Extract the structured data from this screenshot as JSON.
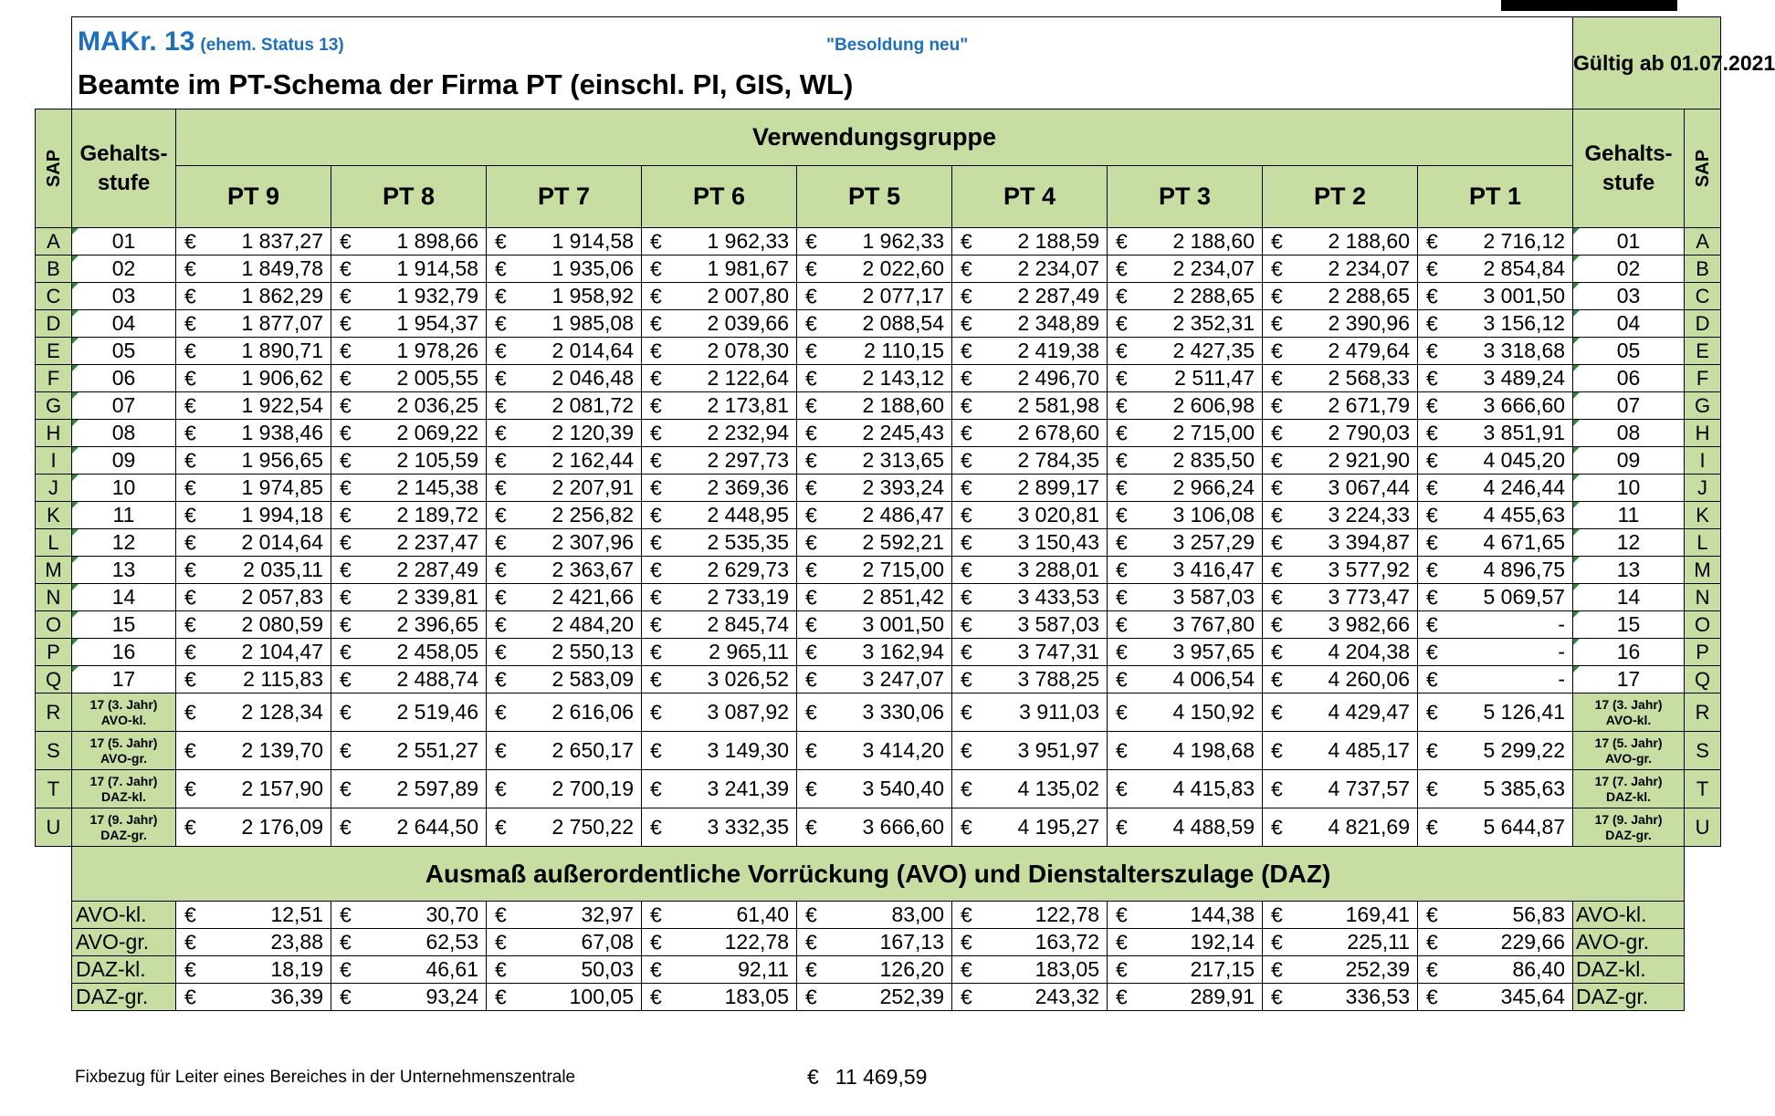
{
  "header": {
    "mak": "MAKr. 13",
    "status": "(ehem. Status 13)",
    "besoldung": "\"Besoldung neu\"",
    "subtitle": "Beamte im PT-Schema der Firma PT (einschl. PI, GIS, WL)",
    "valid": "Gültig ab 01.07.2021"
  },
  "columns": {
    "sap": "SAP",
    "gehaltsstufe": "Gehalts-stufe",
    "verwendungsgruppe": "Verwendungsgruppe",
    "groups": [
      "PT 9",
      "PT 8",
      "PT 7",
      "PT 6",
      "PT 5",
      "PT 4",
      "PT 3",
      "PT 2",
      "PT 1"
    ]
  },
  "currency": "€",
  "rows": [
    {
      "sap": "A",
      "stufe": "01",
      "stufe_b": "",
      "values": [
        "1 837,27",
        "1 898,66",
        "1 914,58",
        "1 962,33",
        "1 962,33",
        "2 188,59",
        "2 188,60",
        "2 188,60",
        "2 716,12"
      ]
    },
    {
      "sap": "B",
      "stufe": "02",
      "stufe_b": "",
      "values": [
        "1 849,78",
        "1 914,58",
        "1 935,06",
        "1 981,67",
        "2 022,60",
        "2 234,07",
        "2 234,07",
        "2 234,07",
        "2 854,84"
      ]
    },
    {
      "sap": "C",
      "stufe": "03",
      "stufe_b": "",
      "values": [
        "1 862,29",
        "1 932,79",
        "1 958,92",
        "2 007,80",
        "2 077,17",
        "2 287,49",
        "2 288,65",
        "2 288,65",
        "3 001,50"
      ]
    },
    {
      "sap": "D",
      "stufe": "04",
      "stufe_b": "",
      "values": [
        "1 877,07",
        "1 954,37",
        "1 985,08",
        "2 039,66",
        "2 088,54",
        "2 348,89",
        "2 352,31",
        "2 390,96",
        "3 156,12"
      ]
    },
    {
      "sap": "E",
      "stufe": "05",
      "stufe_b": "",
      "values": [
        "1 890,71",
        "1 978,26",
        "2 014,64",
        "2 078,30",
        "2 110,15",
        "2 419,38",
        "2 427,35",
        "2 479,64",
        "3 318,68"
      ]
    },
    {
      "sap": "F",
      "stufe": "06",
      "stufe_b": "",
      "values": [
        "1 906,62",
        "2 005,55",
        "2 046,48",
        "2 122,64",
        "2 143,12",
        "2 496,70",
        "2 511,47",
        "2 568,33",
        "3 489,24"
      ]
    },
    {
      "sap": "G",
      "stufe": "07",
      "stufe_b": "",
      "values": [
        "1 922,54",
        "2 036,25",
        "2 081,72",
        "2 173,81",
        "2 188,60",
        "2 581,98",
        "2 606,98",
        "2 671,79",
        "3 666,60"
      ]
    },
    {
      "sap": "H",
      "stufe": "08",
      "stufe_b": "",
      "values": [
        "1 938,46",
        "2 069,22",
        "2 120,39",
        "2 232,94",
        "2 245,43",
        "2 678,60",
        "2 715,00",
        "2 790,03",
        "3 851,91"
      ]
    },
    {
      "sap": "I",
      "stufe": "09",
      "stufe_b": "",
      "values": [
        "1 956,65",
        "2 105,59",
        "2 162,44",
        "2 297,73",
        "2 313,65",
        "2 784,35",
        "2 835,50",
        "2 921,90",
        "4 045,20"
      ]
    },
    {
      "sap": "J",
      "stufe": "10",
      "stufe_b": "",
      "values": [
        "1 974,85",
        "2 145,38",
        "2 207,91",
        "2 369,36",
        "2 393,24",
        "2 899,17",
        "2 966,24",
        "3 067,44",
        "4 246,44"
      ]
    },
    {
      "sap": "K",
      "stufe": "11",
      "stufe_b": "",
      "values": [
        "1 994,18",
        "2 189,72",
        "2 256,82",
        "2 448,95",
        "2 486,47",
        "3 020,81",
        "3 106,08",
        "3 224,33",
        "4 455,63"
      ]
    },
    {
      "sap": "L",
      "stufe": "12",
      "stufe_b": "",
      "values": [
        "2 014,64",
        "2 237,47",
        "2 307,96",
        "2 535,35",
        "2 592,21",
        "3 150,43",
        "3 257,29",
        "3 394,87",
        "4 671,65"
      ]
    },
    {
      "sap": "M",
      "stufe": "13",
      "stufe_b": "",
      "values": [
        "2 035,11",
        "2 287,49",
        "2 363,67",
        "2 629,73",
        "2 715,00",
        "3 288,01",
        "3 416,47",
        "3 577,92",
        "4 896,75"
      ]
    },
    {
      "sap": "N",
      "stufe": "14",
      "stufe_b": "",
      "values": [
        "2 057,83",
        "2 339,81",
        "2 421,66",
        "2 733,19",
        "2 851,42",
        "3 433,53",
        "3 587,03",
        "3 773,47",
        "5 069,57"
      ]
    },
    {
      "sap": "O",
      "stufe": "15",
      "stufe_b": "",
      "values": [
        "2 080,59",
        "2 396,65",
        "2 484,20",
        "2 845,74",
        "3 001,50",
        "3 587,03",
        "3 767,80",
        "3 982,66",
        "-"
      ]
    },
    {
      "sap": "P",
      "stufe": "16",
      "stufe_b": "",
      "values": [
        "2 104,47",
        "2 458,05",
        "2 550,13",
        "2 965,11",
        "3 162,94",
        "3 747,31",
        "3 957,65",
        "4 204,38",
        "-"
      ]
    },
    {
      "sap": "Q",
      "stufe": "17",
      "stufe_b": "",
      "values": [
        "2 115,83",
        "2 488,74",
        "2 583,09",
        "3 026,52",
        "3 247,07",
        "3 788,25",
        "4 006,54",
        "4 260,06",
        "-"
      ]
    },
    {
      "sap": "R",
      "stufe": "17 (3. Jahr)",
      "stufe_b": "AVO-kl.",
      "values": [
        "2 128,34",
        "2 519,46",
        "2 616,06",
        "3 087,92",
        "3 330,06",
        "3 911,03",
        "4 150,92",
        "4 429,47",
        "5 126,41"
      ]
    },
    {
      "sap": "S",
      "stufe": "17 (5. Jahr)",
      "stufe_b": "AVO-gr.",
      "values": [
        "2 139,70",
        "2 551,27",
        "2 650,17",
        "3 149,30",
        "3 414,20",
        "3 951,97",
        "4 198,68",
        "4 485,17",
        "5 299,22"
      ]
    },
    {
      "sap": "T",
      "stufe": "17 (7. Jahr)",
      "stufe_b": "DAZ-kl.",
      "values": [
        "2 157,90",
        "2 597,89",
        "2 700,19",
        "3 241,39",
        "3 540,40",
        "4 135,02",
        "4 415,83",
        "4 737,57",
        "5 385,63"
      ]
    },
    {
      "sap": "U",
      "stufe": "17 (9. Jahr)",
      "stufe_b": "DAZ-gr.",
      "values": [
        "2 176,09",
        "2 644,50",
        "2 750,22",
        "3 332,35",
        "3 666,60",
        "4 195,27",
        "4 488,59",
        "4 821,69",
        "5 644,87"
      ]
    }
  ],
  "avo_section": {
    "title": "Ausmaß außerordentliche Vorrückung (AVO) und Dienstalterszulage (DAZ)",
    "rows": [
      {
        "label": "AVO-kl.",
        "values": [
          "12,51",
          "30,70",
          "32,97",
          "61,40",
          "83,00",
          "122,78",
          "144,38",
          "169,41",
          "56,83"
        ]
      },
      {
        "label": "AVO-gr.",
        "values": [
          "23,88",
          "62,53",
          "67,08",
          "122,78",
          "167,13",
          "163,72",
          "192,14",
          "225,11",
          "229,66"
        ]
      },
      {
        "label": "DAZ-kl.",
        "values": [
          "18,19",
          "46,61",
          "50,03",
          "92,11",
          "126,20",
          "183,05",
          "217,15",
          "252,39",
          "86,40"
        ]
      },
      {
        "label": "DAZ-gr.",
        "values": [
          "36,39",
          "93,24",
          "100,05",
          "183,05",
          "252,39",
          "243,32",
          "289,91",
          "336,53",
          "345,64"
        ]
      }
    ]
  },
  "footer": {
    "label": "Fixbezug für Leiter eines Bereiches in der Unternehmenszentrale",
    "currency": "€",
    "value": "11 469,59"
  }
}
